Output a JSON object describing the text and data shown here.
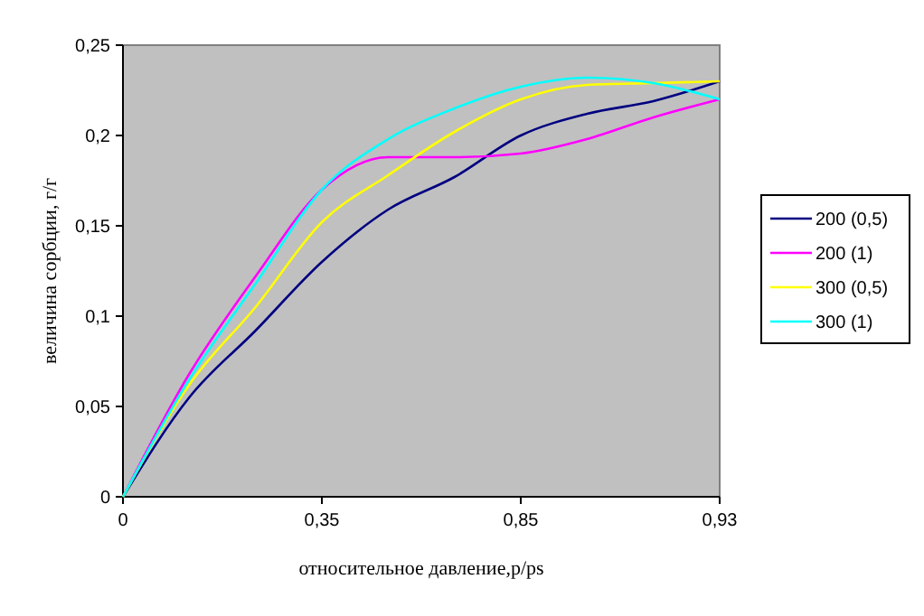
{
  "chart_data": {
    "type": "line",
    "xlabel": "относительное давление,p/ps",
    "ylabel": "величина сорбции, г/г",
    "categories": [
      "0",
      null,
      null,
      "0,35",
      null,
      null,
      "0,85",
      null,
      null,
      "0,93"
    ],
    "ylim": [
      0,
      0.25
    ],
    "yticks": [
      {
        "value": 0,
        "label": "0"
      },
      {
        "value": 0.05,
        "label": "0,05"
      },
      {
        "value": 0.1,
        "label": "0,1"
      },
      {
        "value": 0.15,
        "label": "0,15"
      },
      {
        "value": 0.2,
        "label": "0,2"
      },
      {
        "value": 0.25,
        "label": "0,25"
      }
    ],
    "grid": false,
    "legend": "right",
    "marker": "none",
    "line_style": "solid",
    "series": [
      {
        "name": "200 (0,5)",
        "color": "#000080",
        "values": [
          0,
          0.055,
          0.092,
          0.13,
          0.159,
          0.177,
          0.2,
          0.212,
          0.219,
          0.23
        ]
      },
      {
        "name": "200 (1)",
        "color": "#ff00ff",
        "values": [
          0,
          0.068,
          0.122,
          0.17,
          0.188,
          0.188,
          0.19,
          0.198,
          0.21,
          0.22
        ]
      },
      {
        "name": "300 (0,5)",
        "color": "#ffff00",
        "values": [
          0,
          0.062,
          0.105,
          0.152,
          0.178,
          0.202,
          0.22,
          0.228,
          0.229,
          0.23
        ]
      },
      {
        "name": "300 (1)",
        "color": "#00ffff",
        "values": [
          0,
          0.065,
          0.118,
          0.17,
          0.198,
          0.215,
          0.227,
          0.232,
          0.229,
          0.22
        ]
      }
    ]
  }
}
